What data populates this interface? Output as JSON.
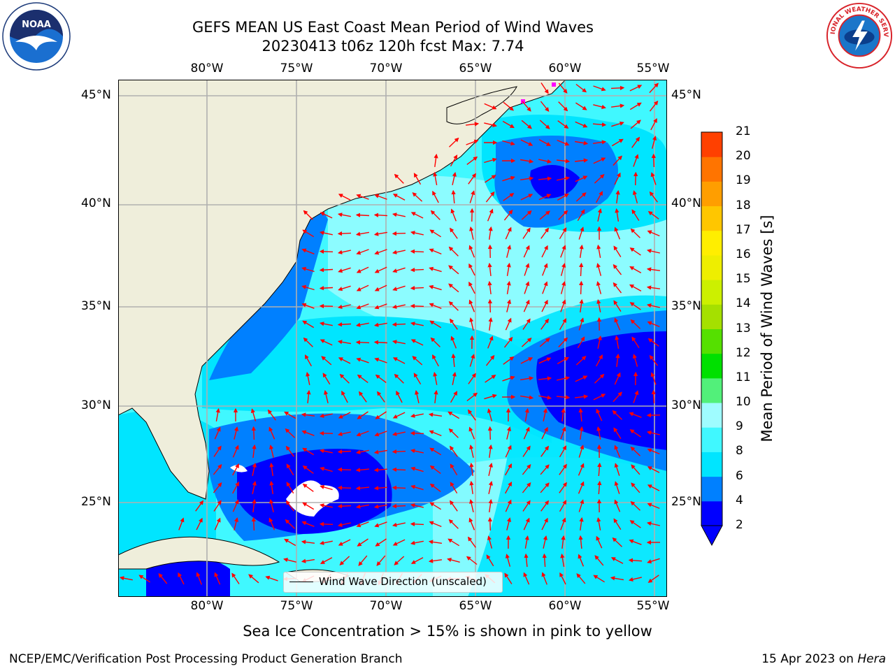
{
  "title": {
    "line1": "GEFS MEAN US East Coast Mean Period of Wind Waves",
    "line2": "20230413 t06z 120h fcst   Max: 7.74"
  },
  "map": {
    "longitudes": [
      "80°W",
      "75°W",
      "70°W",
      "65°W",
      "60°W",
      "55°W"
    ],
    "latitudes": [
      "45°N",
      "40°N",
      "35°N",
      "30°N",
      "25°N"
    ],
    "legend_label": "Wind Wave Direction (unscaled)",
    "land_color": "#efeedb",
    "vector_color": "#ff0000",
    "grid_color": "#b0b0b0"
  },
  "colorbar": {
    "label": "Mean Period of Wind Waves [s]",
    "ticks": [
      "2",
      "4",
      "6",
      "8",
      "9",
      "10",
      "11",
      "12",
      "13",
      "14",
      "15",
      "16",
      "17",
      "18",
      "19",
      "20",
      "21"
    ],
    "colors": [
      "#0000ff",
      "#0080ff",
      "#00e5ff",
      "#40f8ff",
      "#9ffcff",
      "#52f07a",
      "#00e000",
      "#55e000",
      "#a5e000",
      "#ccf000",
      "#eeee00",
      "#ffee00",
      "#ffc600",
      "#ff9e00",
      "#ff7400",
      "#ff4000",
      "#ff0000"
    ]
  },
  "notes": {
    "sea_ice": "Sea Ice Concentration > 15% is shown in pink to yellow"
  },
  "footer": {
    "left": "NCEP/EMC/Verification Post Processing Product Generation Branch",
    "date": "15 Apr 2023 on ",
    "host": "Hera"
  },
  "logos": {
    "noaa": "NOAA",
    "nws": "NATIONAL WEATHER SERVICE"
  }
}
